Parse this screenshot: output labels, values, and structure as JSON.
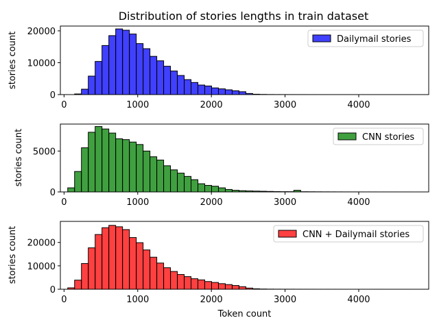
{
  "title": "Distribution of stories lengths in train dataset",
  "chart_data": [
    {
      "type": "bar",
      "subtype": "histogram",
      "series_name": "Dailymail stories",
      "color": "#0000ff",
      "ylabel": "stories count",
      "xlabel": "",
      "xlim": [
        -50,
        4950
      ],
      "ylim": [
        0,
        21500
      ],
      "xticks": [
        "0",
        "1000",
        "2000",
        "3000",
        "4000"
      ],
      "yticks": [
        "0",
        "10000",
        "20000"
      ],
      "xtick_values": [
        0,
        1000,
        2000,
        3000,
        4000
      ],
      "ytick_values": [
        0,
        10000,
        20000
      ],
      "legend": "upper-right",
      "bin_start": 50,
      "bin_width": 93,
      "values": [
        0,
        200,
        1700,
        5800,
        10400,
        15400,
        18500,
        20600,
        20200,
        19000,
        16000,
        14400,
        12000,
        10600,
        8900,
        7400,
        6000,
        4700,
        3800,
        3000,
        2700,
        2100,
        1800,
        1500,
        1200,
        900,
        350,
        120,
        60,
        30,
        20,
        15,
        12,
        10,
        8,
        6,
        5,
        4,
        3,
        3,
        2,
        2,
        2,
        2,
        1,
        1,
        1,
        1,
        1,
        1
      ]
    },
    {
      "type": "bar",
      "subtype": "histogram",
      "series_name": "CNN stories",
      "color": "#008000",
      "ylabel": "stories count",
      "xlabel": "",
      "xlim": [
        -50,
        4950
      ],
      "ylim": [
        0,
        8300
      ],
      "xticks": [
        "0",
        "1000",
        "2000",
        "3000",
        "4000"
      ],
      "yticks": [
        "0",
        "5000"
      ],
      "xtick_values": [
        0,
        1000,
        2000,
        3000,
        4000
      ],
      "ytick_values": [
        0,
        5000
      ],
      "legend": "upper-right",
      "bin_start": 50,
      "bin_width": 93,
      "values": [
        500,
        2500,
        5400,
        7300,
        8000,
        7700,
        7200,
        6500,
        6400,
        6100,
        5800,
        5000,
        4300,
        3900,
        3200,
        2700,
        2300,
        1900,
        1500,
        1000,
        800,
        700,
        500,
        300,
        200,
        150,
        120,
        100,
        80,
        60,
        40,
        30,
        30,
        200,
        25,
        20,
        15,
        12,
        10,
        8,
        6,
        5,
        4,
        3,
        3,
        2,
        2,
        2,
        1,
        1
      ]
    },
    {
      "type": "bar",
      "subtype": "histogram",
      "series_name": "CNN + Dailymail stories",
      "color": "#ff0000",
      "ylabel": "stories count",
      "xlabel": "Token count",
      "xlim": [
        -50,
        4950
      ],
      "ylim": [
        0,
        29000
      ],
      "xticks": [
        "0",
        "1000",
        "2000",
        "3000",
        "4000"
      ],
      "yticks": [
        "0",
        "10000",
        "20000"
      ],
      "xtick_values": [
        0,
        1000,
        2000,
        3000,
        4000
      ],
      "ytick_values": [
        0,
        10000,
        20000
      ],
      "legend": "upper-right",
      "bin_start": 50,
      "bin_width": 93,
      "values": [
        600,
        3900,
        11000,
        17700,
        23400,
        26300,
        27300,
        26700,
        25500,
        22100,
        19900,
        16800,
        13700,
        11200,
        9200,
        7600,
        6300,
        5400,
        4500,
        4000,
        3300,
        2900,
        2400,
        2000,
        1600,
        1100,
        500,
        200,
        100,
        60,
        40,
        30,
        25,
        20,
        15,
        12,
        10,
        8,
        6,
        5,
        4,
        3,
        3,
        2,
        2,
        2,
        1,
        1,
        1,
        1
      ]
    }
  ]
}
